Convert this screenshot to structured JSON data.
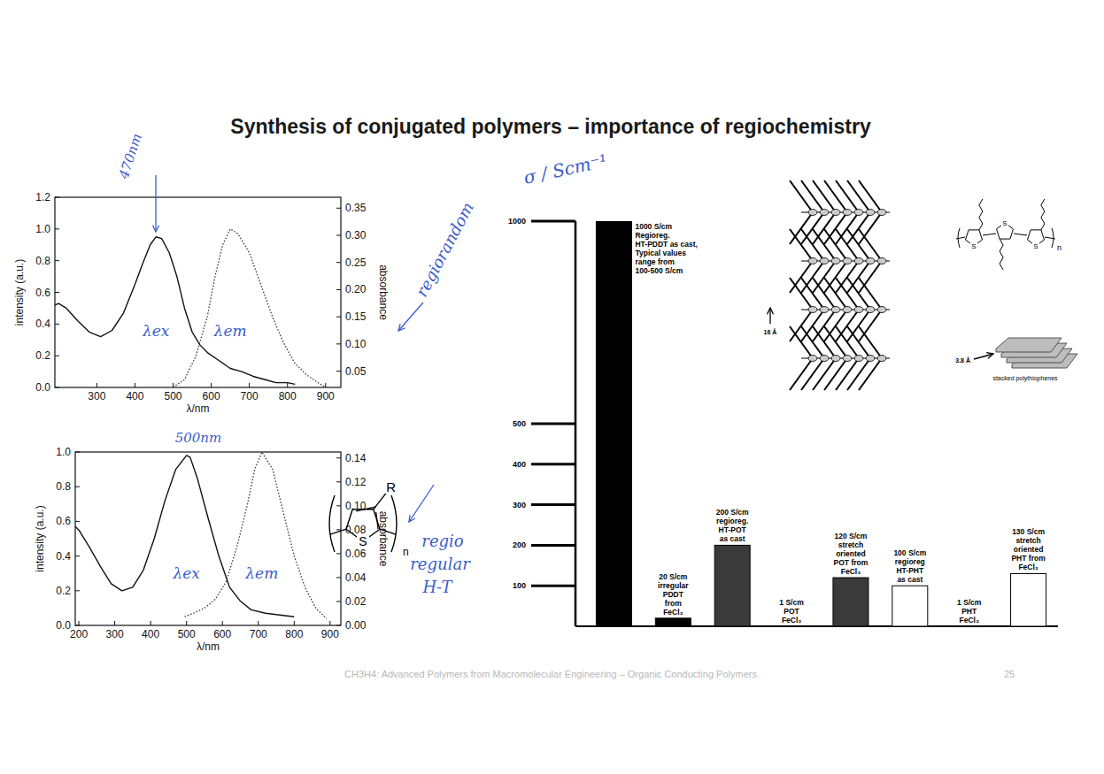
{
  "slide": {
    "title": "Synthesis of conjugated polymers – importance of regiochemistry",
    "footer": "CH3H4: Advanced Polymers from Macromolecular Engineering – Organic Conducting Polymers",
    "page_number": "25"
  },
  "annotations": [
    {
      "text": "470nm"
    },
    {
      "text": "500nm"
    },
    {
      "text": "regiorandom"
    },
    {
      "text": "regio regular H-T"
    }
  ],
  "structure": {
    "substituent": "R",
    "heteroatom": "S",
    "repeat": "n"
  },
  "packing_diagram": {
    "layer_spacing": "16 Å",
    "stack_spacing": "3.8 Å",
    "caption": "stacked polythiophenes",
    "heteroatoms": [
      "S",
      "S",
      "S"
    ],
    "repeat": "n"
  },
  "chart_data": [
    {
      "type": "line",
      "x_label": "λ/nm",
      "y_label": "intensity (a.u.)",
      "y2_label": "absorbance",
      "xlim": [
        190,
        940
      ],
      "xticks": [
        300,
        400,
        500,
        600,
        700,
        800,
        900
      ],
      "ylim": [
        0,
        1.2
      ],
      "yticks": [
        {
          "value": 0,
          "label": "0.0"
        },
        {
          "value": 0.2,
          "label": "0.2"
        },
        {
          "value": 0.4,
          "label": "0.4"
        },
        {
          "value": 0.6,
          "label": "0.6"
        },
        {
          "value": 0.8,
          "label": "0.8"
        },
        {
          "value": 1.0,
          "label": "1.0"
        },
        {
          "value": 1.2,
          "label": "1.2"
        }
      ],
      "y2lim": [
        0.02,
        0.37
      ],
      "y2ticks": [
        {
          "value": 0.05,
          "label": "0.05"
        },
        {
          "value": 0.1,
          "label": "0.10"
        },
        {
          "value": 0.15,
          "label": "0.15"
        },
        {
          "value": 0.2,
          "label": "0.20"
        },
        {
          "value": 0.25,
          "label": "0.25"
        },
        {
          "value": 0.3,
          "label": "0.30"
        },
        {
          "value": 0.35,
          "label": "0.35"
        }
      ],
      "series": [
        {
          "name": "λex",
          "color": "#111111",
          "line_style": "solid",
          "x": [
            190,
            200,
            220,
            250,
            280,
            310,
            340,
            370,
            400,
            420,
            440,
            455,
            470,
            490,
            510,
            530,
            550,
            570,
            590,
            620,
            650,
            680,
            710,
            740,
            770,
            800,
            820
          ],
          "values": [
            0.52,
            0.53,
            0.5,
            0.42,
            0.35,
            0.32,
            0.36,
            0.47,
            0.65,
            0.78,
            0.9,
            0.95,
            0.94,
            0.85,
            0.7,
            0.5,
            0.35,
            0.27,
            0.22,
            0.17,
            0.12,
            0.1,
            0.07,
            0.05,
            0.03,
            0.03,
            0.02
          ]
        },
        {
          "name": "λem",
          "color": "#333333",
          "line_style": "dotted",
          "x": [
            500,
            530,
            560,
            590,
            610,
            630,
            650,
            670,
            700,
            730,
            760,
            790,
            820,
            850,
            880,
            900
          ],
          "values": [
            0.0,
            0.05,
            0.2,
            0.45,
            0.7,
            0.9,
            1.0,
            0.97,
            0.85,
            0.65,
            0.45,
            0.28,
            0.15,
            0.08,
            0.03,
            0.0
          ]
        }
      ]
    },
    {
      "type": "line",
      "x_label": "λ/nm",
      "y_label": "intensity (a.u.)",
      "y2_label": "absorbance",
      "xlim": [
        190,
        930
      ],
      "xticks": [
        200,
        300,
        400,
        500,
        600,
        700,
        800,
        900
      ],
      "ylim": [
        0,
        1.0
      ],
      "yticks": [
        {
          "value": 0,
          "label": "0.0"
        },
        {
          "value": 0.2,
          "label": "0.2"
        },
        {
          "value": 0.4,
          "label": "0.4"
        },
        {
          "value": 0.6,
          "label": "0.6"
        },
        {
          "value": 0.8,
          "label": "0.8"
        },
        {
          "value": 1.0,
          "label": "1.0"
        }
      ],
      "y2lim": [
        0,
        0.145
      ],
      "y2ticks": [
        {
          "value": 0,
          "label": "0.00"
        },
        {
          "value": 0.02,
          "label": "0.02"
        },
        {
          "value": 0.04,
          "label": "0.04"
        },
        {
          "value": 0.06,
          "label": "0.06"
        },
        {
          "value": 0.08,
          "label": "0.08"
        },
        {
          "value": 0.1,
          "label": "0.10"
        },
        {
          "value": 0.12,
          "label": "0.12"
        },
        {
          "value": 0.14,
          "label": "0.14"
        }
      ],
      "series": [
        {
          "name": "λex",
          "color": "#111111",
          "line_style": "solid",
          "x": [
            190,
            200,
            230,
            260,
            290,
            320,
            350,
            380,
            410,
            440,
            470,
            500,
            510,
            530,
            560,
            590,
            620,
            650,
            680,
            720,
            760,
            800
          ],
          "values": [
            0.57,
            0.55,
            0.45,
            0.34,
            0.24,
            0.2,
            0.22,
            0.32,
            0.5,
            0.72,
            0.9,
            0.98,
            0.97,
            0.85,
            0.62,
            0.4,
            0.22,
            0.14,
            0.09,
            0.07,
            0.06,
            0.05
          ]
        },
        {
          "name": "λem",
          "color": "#333333",
          "line_style": "dotted",
          "x": [
            495,
            520,
            550,
            580,
            610,
            640,
            670,
            690,
            710,
            740,
            770,
            800,
            830,
            860,
            890
          ],
          "values": [
            0.05,
            0.07,
            0.1,
            0.15,
            0.25,
            0.45,
            0.7,
            0.9,
            1.0,
            0.9,
            0.65,
            0.4,
            0.22,
            0.1,
            0.04
          ]
        }
      ]
    },
    {
      "type": "bar",
      "y_label": "σ / Scm⁻¹",
      "categories": [
        "1000 S/cm\nRegioreg.\nHT-PDDT as cast,\nTypical values\nrange from\n100-500 S/cm",
        "20 S/cm\nirregular\nPDDT\nfrom\nFeCl₃",
        "200 S/cm\nregioreg.\nHT-POT\nas cast",
        "1 S/cm\nPOT\nFeCl₃",
        "120 S/cm\nstretch\noriented\nPOT from\nFeCl₃",
        "100 S/cm\nregioreg\nHT-PHT\nas cast",
        "1 S/cm\nPHT\nFeCl₃",
        "130 S/cm\nstretch\noriented\nPHT from\nFeCl₃"
      ],
      "values": [
        1000,
        20,
        200,
        1,
        120,
        100,
        1,
        130
      ],
      "colors": [
        "#000000",
        "#000000",
        "#3a3a3a",
        "#3a3a3a",
        "#3a3a3a",
        "#ffffff",
        "#ffffff",
        "#ffffff"
      ],
      "ylim": [
        0,
        1000
      ],
      "yticks": [
        100,
        200,
        300,
        400,
        500,
        1000
      ]
    }
  ]
}
